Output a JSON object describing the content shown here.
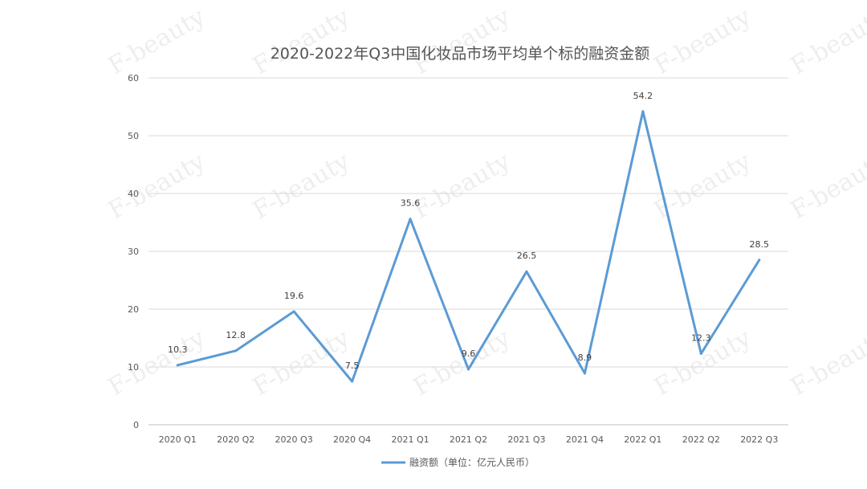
{
  "watermark": "F-beauty",
  "chart_data": {
    "type": "line",
    "title": "2020-2022年Q3中国化妆品市场平均单个标的融资金额",
    "categories": [
      "2020 Q1",
      "2020 Q2",
      "2020 Q3",
      "2020 Q4",
      "2021 Q1",
      "2021 Q2",
      "2021 Q3",
      "2021 Q4",
      "2022 Q1",
      "2022 Q2",
      "2022 Q3"
    ],
    "series": [
      {
        "name": "融资额（单位：亿元人民币）",
        "values": [
          10.3,
          12.8,
          19.6,
          7.5,
          35.6,
          9.6,
          26.5,
          8.9,
          54.2,
          12.3,
          28.5
        ],
        "color": "#5b9bd5"
      }
    ],
    "yticks": [
      "0",
      "10",
      "20",
      "30",
      "40",
      "50",
      "60"
    ],
    "ylim": [
      0,
      60
    ],
    "grid": true,
    "legend_position": "bottom",
    "data_labels": [
      "10.3",
      "12.8",
      "19.6",
      "7.5",
      "35.6",
      "9.6",
      "26.5",
      "8.9",
      "54.2",
      "12.3",
      "28.5"
    ]
  }
}
